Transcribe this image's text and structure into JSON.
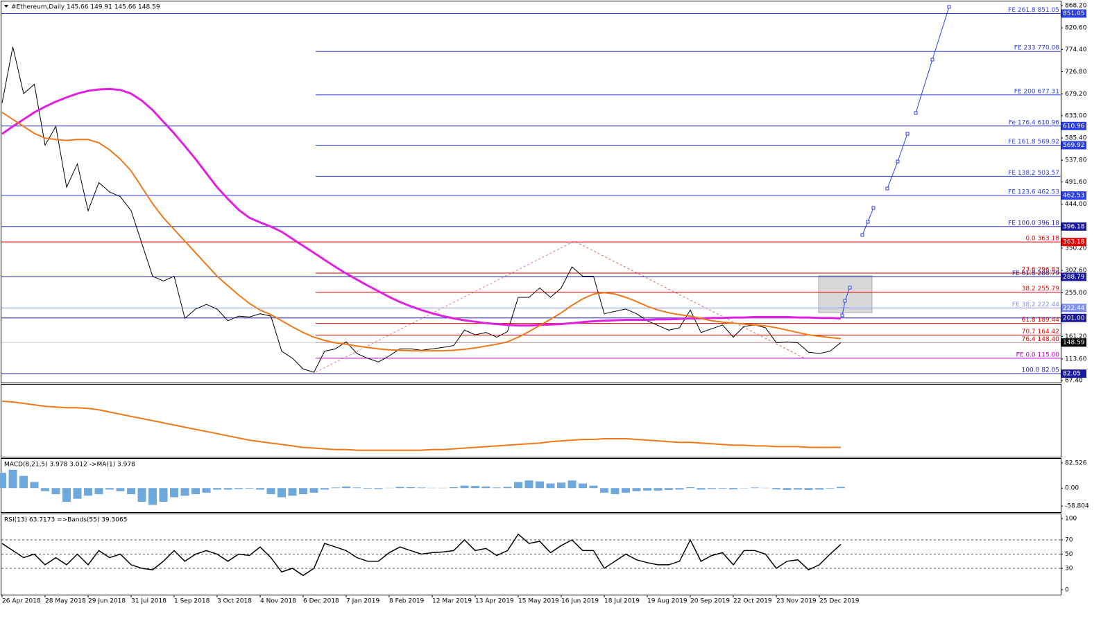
{
  "chart_data": [
    {
      "type": "line",
      "title": "#Ethereum,Daily  145.66 149.91 145.66 148.59",
      "categories": [
        "26 Apr 2018",
        null,
        null,
        null,
        "28 May 2018",
        null,
        null,
        null,
        "29 Jun 2018",
        null,
        null,
        null,
        "31 Jul 2018",
        null,
        null,
        null,
        "1 Sep 2018",
        null,
        null,
        null,
        "3 Oct 2018",
        null,
        null,
        null,
        "4 Nov 2018",
        null,
        null,
        null,
        "6 Dec 2018",
        null,
        null,
        null,
        "7 Jan 2019",
        null,
        null,
        null,
        "8 Feb 2019",
        null,
        null,
        null,
        "12 Mar 2019",
        null,
        null,
        null,
        "13 Apr 2019",
        null,
        null,
        null,
        "15 May 2019",
        null,
        null,
        null,
        "16 Jun 2019",
        null,
        null,
        null,
        "18 Jul 2019",
        null,
        null,
        null,
        "19 Aug 2019",
        null,
        null,
        null,
        "20 Sep 2019",
        null,
        null,
        null,
        "22 Oct 2019",
        null,
        null,
        null,
        "23 Nov 2019",
        null,
        null,
        null,
        "25 Dec 2019",
        null,
        null
      ],
      "series": [
        {
          "color": "#000000",
          "width": 1,
          "values": [
            660,
            780,
            680,
            700,
            570,
            610,
            480,
            530,
            430,
            490,
            470,
            460,
            430,
            360,
            290,
            280,
            290,
            200,
            220,
            230,
            220,
            195,
            205,
            203,
            210,
            205,
            130,
            115,
            92,
            85,
            130,
            135,
            150,
            125,
            115,
            107,
            120,
            135,
            135,
            132,
            135,
            138,
            142,
            175,
            165,
            170,
            160,
            172,
            245,
            245,
            265,
            245,
            265,
            310,
            290,
            290,
            210,
            215,
            220,
            210,
            195,
            185,
            175,
            180,
            218,
            170,
            178,
            186,
            160,
            183,
            186,
            180,
            148,
            150,
            148,
            128,
            125,
            130,
            148.59
          ]
        },
        {
          "color": "#e020e0",
          "width": 3,
          "values": [
            594,
            610,
            625,
            640,
            652,
            663,
            672,
            680,
            686,
            689,
            690,
            688,
            680,
            665,
            645,
            620,
            595,
            568,
            540,
            510,
            480,
            455,
            432,
            415,
            405,
            396,
            385,
            370,
            355,
            340,
            325,
            310,
            296,
            283,
            270,
            258,
            246,
            235,
            226,
            218,
            211,
            205,
            200,
            196,
            193,
            190,
            188,
            186,
            185,
            185,
            186,
            187,
            188,
            190,
            192,
            194,
            195,
            196,
            197,
            197,
            197,
            198,
            198,
            199,
            200,
            200,
            201,
            201,
            202,
            202,
            203,
            203,
            203,
            203,
            202,
            202,
            201,
            201,
            200
          ]
        },
        {
          "color": "#f07818",
          "width": 2,
          "values": [
            640,
            625,
            610,
            595,
            585,
            582,
            580,
            582,
            582,
            575,
            560,
            540,
            515,
            480,
            445,
            415,
            390,
            365,
            340,
            315,
            290,
            270,
            250,
            232,
            218,
            208,
            195,
            182,
            170,
            160,
            153,
            148,
            145,
            141,
            138,
            135,
            133,
            132,
            131,
            131,
            131,
            131,
            132,
            134,
            137,
            141,
            145,
            150,
            160,
            172,
            185,
            198,
            212,
            228,
            242,
            252,
            255,
            252,
            245,
            236,
            226,
            218,
            212,
            208,
            205,
            200,
            195,
            192,
            190,
            188,
            186,
            184,
            180,
            175,
            170,
            165,
            162,
            159,
            157
          ]
        }
      ],
      "ylim": [
        63,
        877
      ],
      "yticks": [
        {
          "value": 868.2,
          "label": "868.20"
        },
        {
          "value": 820.6,
          "label": "820.60"
        },
        {
          "value": 774.4,
          "label": "774.40"
        },
        {
          "value": 726.8,
          "label": "726.80"
        },
        {
          "value": 679.2,
          "label": "679.20"
        },
        {
          "value": 633,
          "label": "633.00"
        },
        {
          "value": 585.4,
          "label": "585.40"
        },
        {
          "value": 537.8,
          "label": "537.80"
        },
        {
          "value": 491.6,
          "label": "491.60"
        },
        {
          "value": 444,
          "label": "444.00"
        },
        {
          "value": 350.2,
          "label": "350.20"
        },
        {
          "value": 302.6,
          "label": "302.60"
        },
        {
          "value": 255,
          "label": "255.00"
        },
        {
          "value": 161.2,
          "label": "161.20"
        },
        {
          "value": 113.6,
          "label": "113.60"
        },
        {
          "value": 67.4,
          "label": "67.40"
        }
      ],
      "levels": [
        {
          "value": 851.05,
          "label": "FE 261.8 851.05",
          "color": "#2a3ee8",
          "full": true,
          "tag": "851.05"
        },
        {
          "value": 770.08,
          "label": "FE 233 770.08",
          "color": "#2a3ee8",
          "full": false
        },
        {
          "value": 677.31,
          "label": "FE 200 677.31",
          "color": "#2a3ee8",
          "full": false
        },
        {
          "value": 610.96,
          "label": "Fe 176.4 610.96",
          "color": "#2a3ee8",
          "full": true,
          "tag": "610.96"
        },
        {
          "value": 569.92,
          "label": "FE 161.8 569.92",
          "color": "#2a3ee8",
          "full": false,
          "tag": "569.92"
        },
        {
          "value": 503.57,
          "label": "FE 138.2 503.57",
          "color": "#2a3ee8",
          "full": false
        },
        {
          "value": 462.53,
          "label": "FE 123.6 462.53",
          "color": "#2a3ee8",
          "full": true,
          "tag": "462.53"
        },
        {
          "value": 396.18,
          "label": "FE 100.0 396.18",
          "color": "#1a1aa0",
          "full": true,
          "tag": "396.18"
        },
        {
          "value": 363.18,
          "label": "0.0 363.18",
          "color": "#e00000",
          "full": true,
          "tag": "363.18"
        },
        {
          "value": 296.83,
          "label": "23.6 296.83",
          "color": "#e00000",
          "full": false
        },
        {
          "value": 288.79,
          "label": "FE 61.8 288.79",
          "color": "#1a1aa0",
          "full": true,
          "tag": "288.79"
        },
        {
          "value": 255.79,
          "label": "38.2 255.79",
          "color": "#e00000",
          "full": false
        },
        {
          "value": 222.44,
          "label": "FE 38.2 222.44",
          "color": "#8090f0",
          "full": true,
          "tag": "222.44"
        },
        {
          "value": 201,
          "color": "#1a1aa0",
          "full": true,
          "tag": "201.00"
        },
        {
          "value": 189.44,
          "label": "61.8 189.44",
          "color": "#e00000",
          "full": false
        },
        {
          "value": 164.42,
          "label": "70.7 164.42",
          "color": "#e00000",
          "full": false
        },
        {
          "value": 148.4,
          "label": "76.4 148.40",
          "color": "#e00000",
          "full": false
        },
        {
          "value": 115,
          "label": "FE 0.0 115.00",
          "color": "#b000c0",
          "full": false
        },
        {
          "value": 82.05,
          "label": "100.0 82.05",
          "color": "#1a1aa0",
          "full": true,
          "tag": "82.05"
        }
      ],
      "last": {
        "value": 148.59,
        "tag": "148.59",
        "color": "#000000"
      }
    },
    {
      "type": "line",
      "series": [
        {
          "color": "#f07818",
          "width": 2,
          "values": [
            77,
            76,
            74,
            72,
            70,
            69,
            68,
            68,
            67,
            65,
            62,
            59,
            56,
            53,
            50,
            47,
            44,
            41,
            38,
            35,
            32,
            29,
            26,
            23,
            21,
            19,
            17,
            15,
            13,
            12,
            11,
            10,
            10,
            9,
            9,
            9,
            9,
            9,
            9,
            9,
            10,
            10,
            11,
            12,
            13,
            14,
            15,
            16,
            17,
            18,
            19,
            21,
            22,
            23,
            24,
            24,
            25,
            25,
            25,
            24,
            23,
            22,
            21,
            20,
            20,
            19,
            18,
            17,
            16,
            16,
            15,
            15,
            14,
            14,
            14,
            13,
            13,
            13,
            13
          ]
        }
      ],
      "ylim": [
        0,
        100
      ]
    },
    {
      "type": "macd",
      "title": "MACD(8,21,5) 3.978 3.012 ->MA(1) 3.978",
      "color": "#6fa8dc",
      "values": [
        50,
        60,
        40,
        20,
        -10,
        -20,
        -45,
        -35,
        -25,
        -20,
        -5,
        -10,
        -20,
        -45,
        -55,
        -45,
        -30,
        -25,
        -20,
        -15,
        -5,
        -5,
        -3,
        -2,
        -5,
        -20,
        -30,
        -25,
        -20,
        -15,
        -5,
        2,
        5,
        2,
        -2,
        -3,
        1,
        4,
        3,
        2,
        1,
        1,
        3,
        8,
        7,
        5,
        2,
        4,
        20,
        25,
        22,
        15,
        18,
        25,
        15,
        8,
        -15,
        -20,
        -15,
        -10,
        -8,
        -8,
        -6,
        -5,
        3,
        -5,
        -3,
        -2,
        -4,
        -1,
        2,
        1,
        -4,
        -6,
        -5,
        -6,
        -5,
        -2,
        3.978
      ],
      "ylim": [
        -79,
        96
      ],
      "yticks": [
        82.526,
        {
          "value": 0,
          "label": "0.00"
        },
        -58.804
      ]
    },
    {
      "type": "rsi",
      "title": "RSI(13) 63.7173 =>Bands(55) 39.3065",
      "color": "#000000",
      "values": [
        65,
        55,
        45,
        50,
        35,
        45,
        35,
        50,
        35,
        55,
        45,
        50,
        35,
        30,
        28,
        40,
        55,
        40,
        50,
        55,
        50,
        40,
        50,
        48,
        60,
        45,
        25,
        30,
        20,
        30,
        65,
        60,
        55,
        45,
        40,
        40,
        52,
        60,
        55,
        50,
        52,
        53,
        55,
        70,
        55,
        58,
        48,
        55,
        78,
        65,
        68,
        52,
        62,
        70,
        55,
        55,
        30,
        40,
        50,
        42,
        38,
        35,
        35,
        40,
        70,
        40,
        48,
        52,
        35,
        55,
        55,
        50,
        30,
        40,
        42,
        28,
        35,
        50,
        63.7173
      ],
      "ylim": [
        -7,
        106
      ],
      "yticks": [
        100,
        70,
        50,
        30,
        0
      ],
      "dashed": [
        70,
        50,
        30
      ]
    }
  ]
}
